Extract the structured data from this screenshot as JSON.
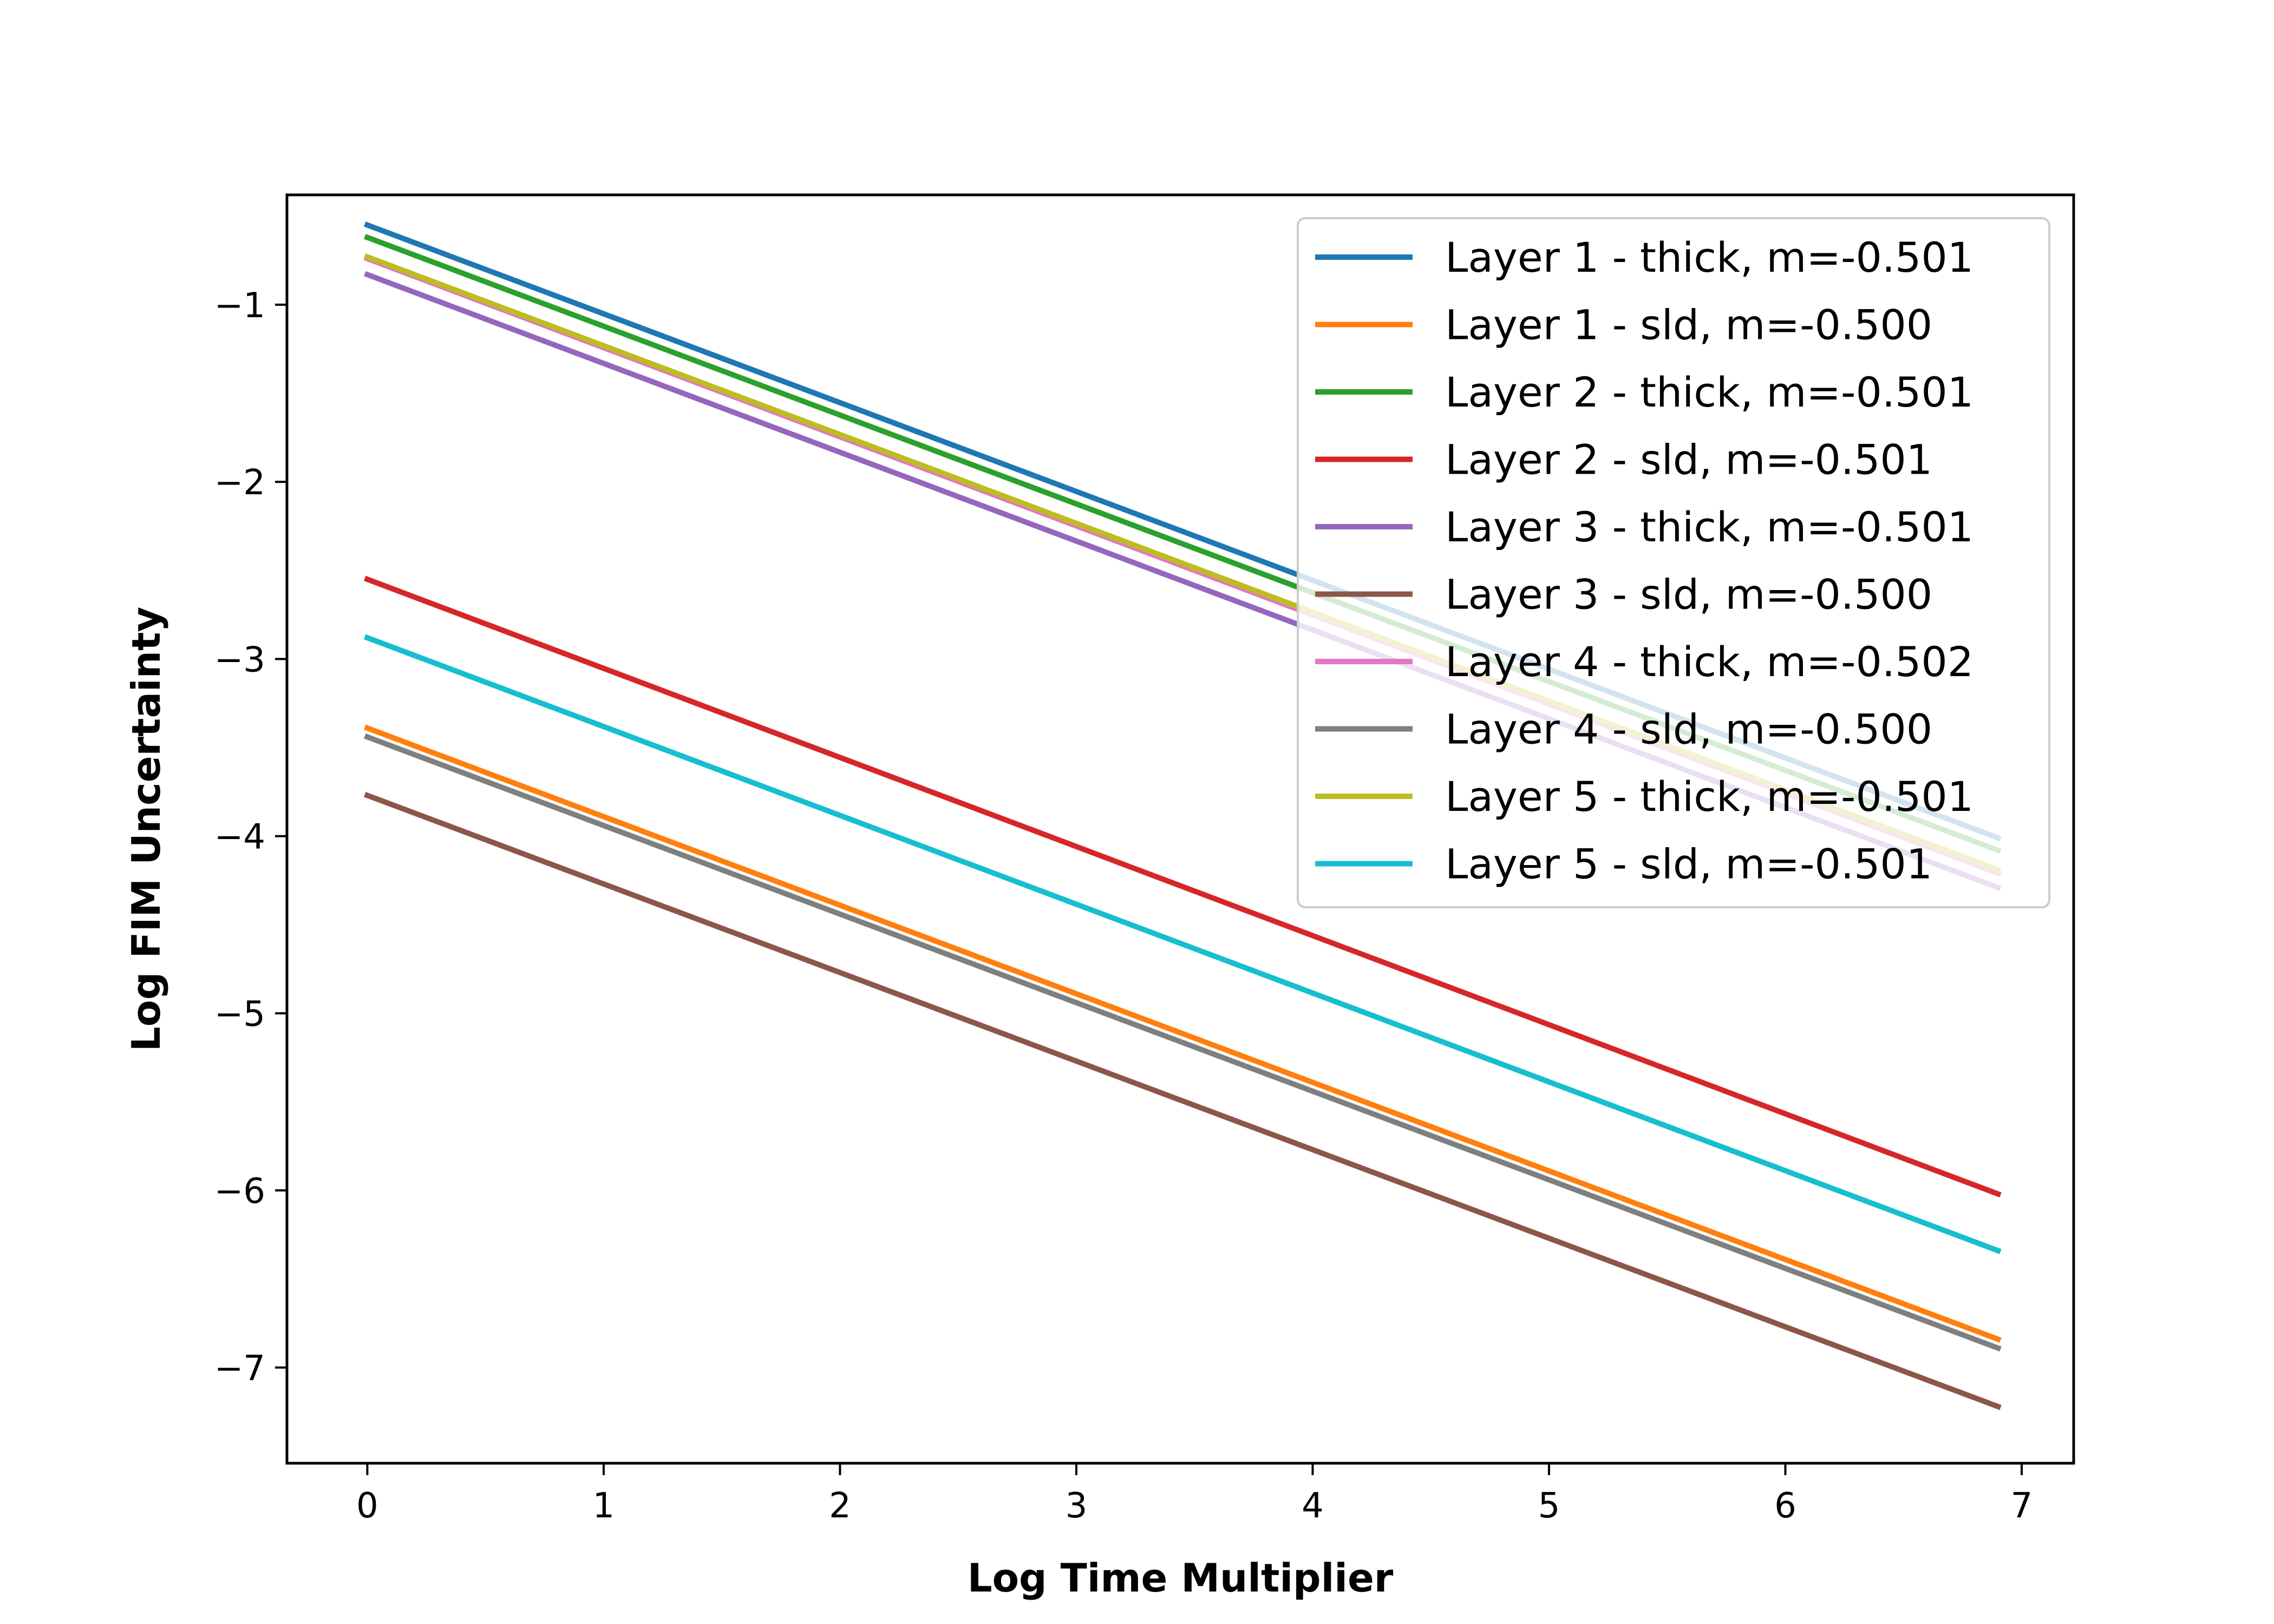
{
  "chart_data": {
    "type": "line",
    "title": "",
    "xlabel": "Log Time Multiplier",
    "ylabel": "Log FIM Uncertainty",
    "xlim": [
      -0.34,
      7.22
    ],
    "ylim": [
      -7.54,
      -0.38
    ],
    "xticks": [
      0,
      1,
      2,
      3,
      4,
      5,
      6,
      7
    ],
    "yticks": [
      -1,
      -2,
      -3,
      -4,
      -5,
      -6,
      -7
    ],
    "grid": false,
    "legend_position": "top-right",
    "x": [
      0,
      6.9
    ],
    "series": [
      {
        "name": "Layer 1 - thick, m=-0.501",
        "color": "#1f77b4",
        "values": [
          -0.55,
          -4.01
        ]
      },
      {
        "name": "Layer 1 - sld, m=-0.500",
        "color": "#ff7f0e",
        "values": [
          -3.39,
          -6.84
        ]
      },
      {
        "name": "Layer 2 - thick, m=-0.501",
        "color": "#2ca02c",
        "values": [
          -0.62,
          -4.08
        ]
      },
      {
        "name": "Layer 2 - sld, m=-0.501",
        "color": "#d62728",
        "values": [
          -2.55,
          -6.02
        ]
      },
      {
        "name": "Layer 3 - thick, m=-0.501",
        "color": "#9467bd",
        "values": [
          -0.83,
          -4.29
        ]
      },
      {
        "name": "Layer 3 - sld, m=-0.500",
        "color": "#8c564b",
        "values": [
          -3.77,
          -7.22
        ]
      },
      {
        "name": "Layer 4 - thick, m=-0.502",
        "color": "#e377c2",
        "values": [
          -0.74,
          -4.21
        ]
      },
      {
        "name": "Layer 4 - sld, m=-0.500",
        "color": "#7f7f7f",
        "values": [
          -3.44,
          -6.89
        ]
      },
      {
        "name": "Layer 5 - thick, m=-0.501",
        "color": "#bcbd22",
        "values": [
          -0.73,
          -4.19
        ]
      },
      {
        "name": "Layer 5 - sld, m=-0.501",
        "color": "#17becf",
        "values": [
          -2.88,
          -6.34
        ]
      }
    ]
  }
}
